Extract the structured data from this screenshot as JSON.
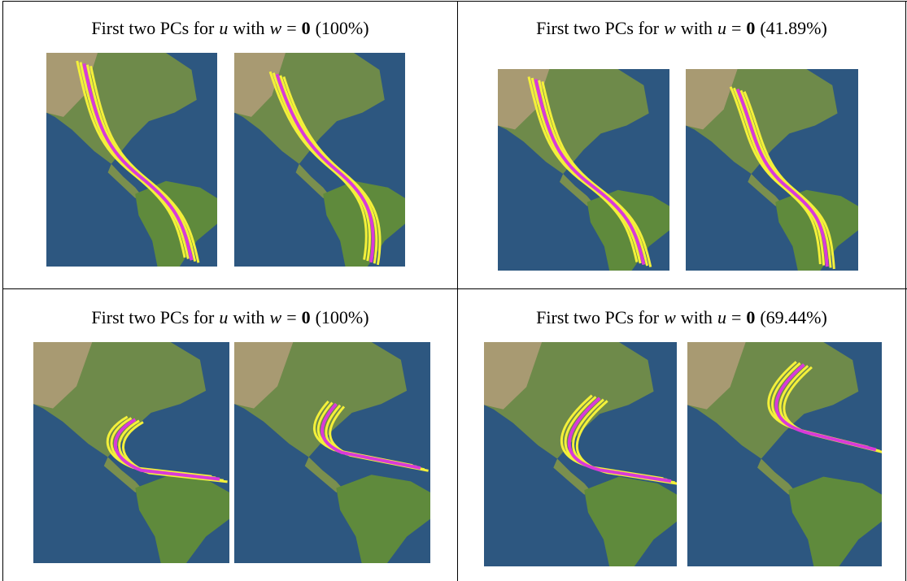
{
  "figure": {
    "cells": [
      {
        "caption": [
          {
            "text": "First two PCs for"
          },
          {
            "text": "u",
            "style": "italic"
          },
          {
            "text": "with"
          },
          {
            "text": "w",
            "style": "italic"
          },
          {
            "text": "="
          },
          {
            "text": "0",
            "style": "bold"
          },
          {
            "text": "(100%)"
          }
        ]
      },
      {
        "caption": [
          {
            "text": "First two PCs for"
          },
          {
            "text": "w",
            "style": "italic"
          },
          {
            "text": "with"
          },
          {
            "text": "u",
            "style": "italic"
          },
          {
            "text": "="
          },
          {
            "text": "0",
            "style": "bold"
          },
          {
            "text": "(41.89%)"
          }
        ]
      },
      {
        "caption": [
          {
            "text": "First two PCs for"
          },
          {
            "text": "u",
            "style": "italic"
          },
          {
            "text": "with"
          },
          {
            "text": "w",
            "style": "italic"
          },
          {
            "text": "="
          },
          {
            "text": "0",
            "style": "bold"
          },
          {
            "text": "(100%)"
          }
        ]
      },
      {
        "caption": [
          {
            "text": "First two PCs for"
          },
          {
            "text": "w",
            "style": "italic"
          },
          {
            "text": "with"
          },
          {
            "text": "u",
            "style": "italic"
          },
          {
            "text": "="
          },
          {
            "text": "0",
            "style": "bold"
          },
          {
            "text": "(69.44%)"
          }
        ]
      }
    ]
  }
}
